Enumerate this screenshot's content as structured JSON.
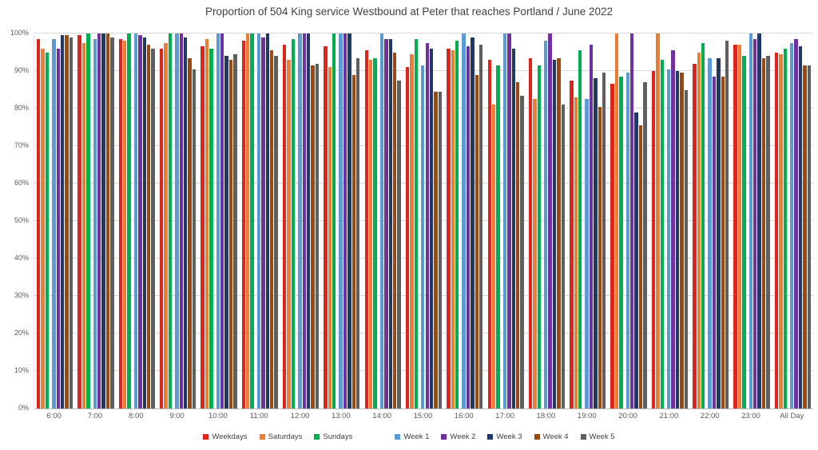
{
  "chart_data": {
    "type": "bar",
    "title": "Proportion of 504 King service Westbound at Peter that reaches Portland / June 2022",
    "xlabel": "",
    "ylabel": "",
    "ylim": [
      0,
      100
    ],
    "yticks": [
      "0%",
      "10%",
      "20%",
      "30%",
      "40%",
      "50%",
      "60%",
      "70%",
      "80%",
      "90%",
      "100%"
    ],
    "grid": true,
    "legend_position": "bottom",
    "categories": [
      "6:00",
      "7:00",
      "8:00",
      "9:00",
      "10:00",
      "11:00",
      "12:00",
      "13:00",
      "14:00",
      "15:00",
      "16:00",
      "17:00",
      "18:00",
      "19:00",
      "20:00",
      "21:00",
      "22:00",
      "23:00",
      "All Day"
    ],
    "series": [
      {
        "name": "Weekdays",
        "color": "#e2231a",
        "values": [
          98.5,
          99.5,
          98.5,
          96,
          96.5,
          98,
          97,
          96.5,
          95.5,
          91,
          96,
          93,
          93.5,
          87.5,
          86.5,
          90,
          92,
          97,
          95
        ]
      },
      {
        "name": "Saturdays",
        "color": "#ed7d31",
        "values": [
          96,
          97.5,
          98,
          97.5,
          98.5,
          100,
          93,
          91,
          93,
          94.5,
          95.5,
          81,
          82.5,
          83,
          100,
          100,
          95,
          97,
          94.5
        ]
      },
      {
        "name": "Sundays",
        "color": "#00b050",
        "values": [
          95,
          100,
          100,
          100,
          96,
          100,
          98.5,
          100,
          93.5,
          98.5,
          98,
          91.5,
          91.5,
          95.5,
          88.5,
          93,
          97.5,
          94,
          96
        ]
      },
      {
        "name": "Week 1",
        "color": "#5b9bd5",
        "values": [
          98.5,
          98.5,
          100,
          100,
          100,
          100,
          100,
          100,
          100,
          91.5,
          100,
          100,
          98,
          82.5,
          89.5,
          90.5,
          93.5,
          100,
          97.5
        ]
      },
      {
        "name": "Week 2",
        "color": "#7030a0",
        "values": [
          96,
          100,
          99.5,
          100,
          100,
          99,
          100,
          100,
          98.5,
          97.5,
          96.5,
          100,
          100,
          97,
          100,
          95.5,
          88.5,
          98.5,
          98.5
        ]
      },
      {
        "name": "Week 3",
        "color": "#1f3864",
        "values": [
          99.5,
          100,
          99,
          99,
          94,
          100,
          100,
          100,
          98.5,
          96,
          99,
          96,
          93,
          88,
          79,
          90,
          93.5,
          100,
          96.5
        ]
      },
      {
        "name": "Week 4",
        "color": "#9e480e",
        "values": [
          99.5,
          100,
          97,
          93.5,
          93,
          95.5,
          91.5,
          89,
          95,
          84.5,
          89,
          87,
          93.5,
          80.5,
          75.5,
          89.5,
          88.5,
          93.5,
          91.5
        ]
      },
      {
        "name": "Week 5",
        "color": "#5f5f5f",
        "values": [
          99,
          99,
          96,
          90.5,
          94.5,
          94,
          92,
          93.5,
          87.5,
          84.5,
          97,
          83.5,
          81,
          89.5,
          87,
          85,
          98,
          94,
          91.5
        ]
      }
    ]
  },
  "style": {
    "gridline_color": "#d9d9d9",
    "axis_text_color": "#595959",
    "title_color": "#404040"
  }
}
